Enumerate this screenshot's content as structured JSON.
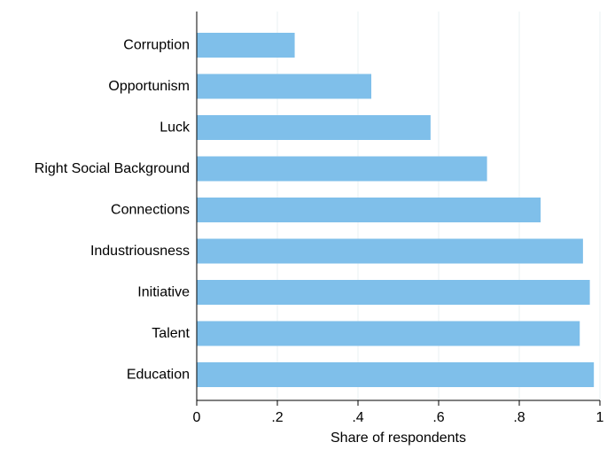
{
  "chart_data": {
    "type": "bar",
    "orientation": "horizontal",
    "categories": [
      "Corruption",
      "Opportunism",
      "Luck",
      "Right Social Background",
      "Connections",
      "Industriousness",
      "Initiative",
      "Talent",
      "Education"
    ],
    "values": [
      0.243,
      0.433,
      0.58,
      0.72,
      0.853,
      0.958,
      0.975,
      0.95,
      0.985
    ],
    "xlabel": "Share of respondents",
    "ylabel": "",
    "title": "",
    "xlim": [
      0,
      1
    ],
    "xticks": [
      0,
      0.2,
      0.4,
      0.6,
      0.8,
      1
    ],
    "xtick_labels": [
      "0",
      ".2",
      ".4",
      ".6",
      ".8",
      "1"
    ],
    "bar_color": "#7fbfea",
    "grid": "vertical gridlines",
    "legend": "none"
  }
}
